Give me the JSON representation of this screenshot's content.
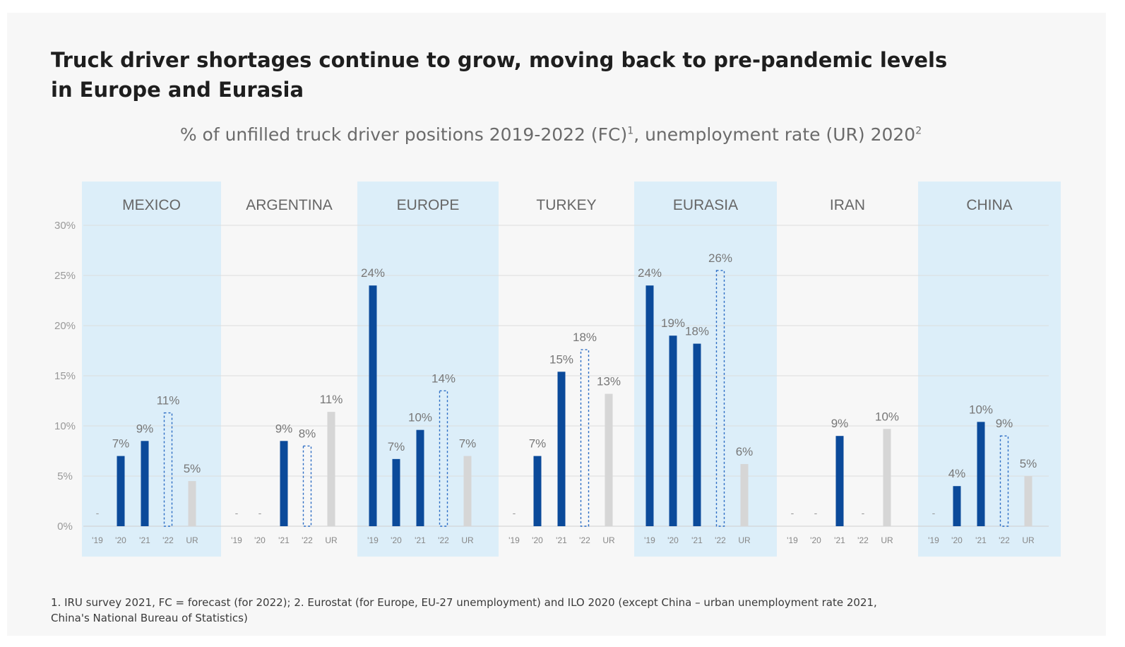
{
  "title_line1": "Truck driver shortages continue to grow, moving back to pre-pandemic levels",
  "title_line2": "in Europe and Eurasia",
  "subtitle_main": "% of unfilled truck driver positions 2019-2022 (FC)",
  "subtitle_sup1": "1",
  "subtitle_mid": ", unemployment rate (UR) 2020",
  "subtitle_sup2": "2",
  "footnote_line1": "1. IRU survey 2021, FC = forecast (for 2022); 2. Eurostat (for Europe, EU-27 unemployment) and ILO 2020 (except China – urban unemployment rate 2021,",
  "footnote_line2": "China's National Bureau of Statistics)",
  "colors": {
    "actual": "#0b4a9a",
    "forecast_outline": "#2b6cc4",
    "unemployment": "#d6d6d6",
    "panel_highlight": "#dceef9",
    "label": "#777777",
    "grid": "#dddddd"
  },
  "chart_data": {
    "type": "bar",
    "y_axis": {
      "min": 0,
      "max": 30,
      "ticks": [
        "0%",
        "5%",
        "10%",
        "15%",
        "20%",
        "25%",
        "30%"
      ]
    },
    "bar_categories": [
      "'19",
      "'20",
      "'21",
      "'22",
      "UR"
    ],
    "bar_styles": [
      "actual",
      "actual",
      "actual",
      "forecast",
      "unemployment"
    ],
    "missing_marker": "-",
    "grid": true,
    "panels": [
      {
        "name": "MEXICO",
        "highlighted": true,
        "values": [
          null,
          7,
          8.5,
          11.3,
          4.5
        ],
        "labels": [
          "-",
          "7%",
          "9%",
          "11%",
          "5%"
        ]
      },
      {
        "name": "ARGENTINA",
        "highlighted": false,
        "values": [
          null,
          null,
          8.5,
          8,
          11.4
        ],
        "labels": [
          "-",
          "-",
          "9%",
          "8%",
          "11%"
        ]
      },
      {
        "name": "EUROPE",
        "highlighted": true,
        "values": [
          24,
          6.7,
          9.6,
          13.5,
          7
        ],
        "labels": [
          "24%",
          "7%",
          "10%",
          "14%",
          "7%"
        ]
      },
      {
        "name": "TURKEY",
        "highlighted": false,
        "values": [
          null,
          7,
          15.4,
          17.6,
          13.2
        ],
        "labels": [
          "-",
          "7%",
          "15%",
          "18%",
          "13%"
        ]
      },
      {
        "name": "EURASIA",
        "highlighted": true,
        "values": [
          24,
          19,
          18.2,
          25.5,
          6.2
        ],
        "labels": [
          "24%",
          "19%",
          "18%",
          "26%",
          "6%"
        ]
      },
      {
        "name": "IRAN",
        "highlighted": false,
        "values": [
          null,
          null,
          9,
          null,
          9.7
        ],
        "labels": [
          "-",
          "-",
          "9%",
          "-",
          "10%"
        ]
      },
      {
        "name": "CHINA",
        "highlighted": true,
        "values": [
          null,
          4,
          10.4,
          9,
          5
        ],
        "labels": [
          "-",
          "4%",
          "10%",
          "9%",
          "5%"
        ]
      }
    ]
  }
}
